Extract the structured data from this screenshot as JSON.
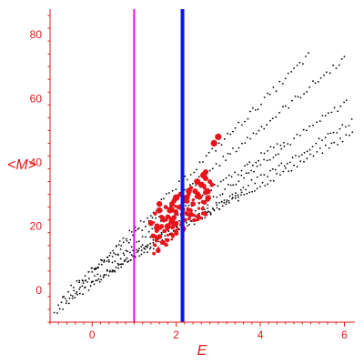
{
  "chart_data": {
    "type": "scatter",
    "title": "",
    "xlabel": "E",
    "ylabel": "<M>",
    "xlim": [
      -1.0,
      6.25
    ],
    "ylim": [
      -10,
      88
    ],
    "x_ticks": [
      0,
      2,
      4,
      6
    ],
    "x_tick_labels": [
      "0",
      "2",
      "4",
      "6"
    ],
    "y_ticks": [
      0,
      20,
      40,
      60,
      80
    ],
    "y_tick_labels": [
      "0",
      "20",
      "40",
      "60",
      "80"
    ],
    "grid": false,
    "vertical_lines": [
      {
        "x": 1.0,
        "color": "#e010e0"
      },
      {
        "x": 2.15,
        "color": "#0a18e6"
      }
    ],
    "colors": {
      "axis": "#e8141a",
      "black_points": "#000000",
      "red_points": "#e8141a",
      "magenta_line": "#e010e0",
      "blue_line": "#0a18e6"
    },
    "series": [
      {
        "color": "#000000",
        "size": "small",
        "note_bands": "black dots form fanned bands",
        "x": [],
        "y": []
      },
      {
        "color": "#e8141a",
        "size": "large",
        "x": [
          1.5,
          1.6,
          1.7,
          1.75,
          1.8,
          1.9,
          2.0,
          2.0,
          2.1,
          2.2,
          2.3,
          2.3,
          2.4,
          2.5,
          2.6,
          2.7,
          2.8,
          2.9,
          1.4,
          1.55,
          1.65,
          1.85,
          1.95,
          2.05,
          2.25,
          2.45,
          2.55,
          2.65,
          2.75,
          1.45,
          1.7,
          1.9,
          2.1,
          2.35,
          2.5,
          2.7,
          2.85,
          3.0,
          1.6,
          1.8
        ],
        "y": [
          24,
          25,
          22,
          26,
          20,
          27,
          24,
          29,
          26,
          28,
          30,
          31,
          27,
          30,
          33,
          35,
          34,
          46,
          21,
          19,
          23,
          25,
          28,
          26,
          29,
          31,
          29,
          36,
          31,
          17,
          15,
          22,
          30,
          32,
          34,
          37,
          33,
          48,
          27,
          23
        ]
      }
    ]
  }
}
